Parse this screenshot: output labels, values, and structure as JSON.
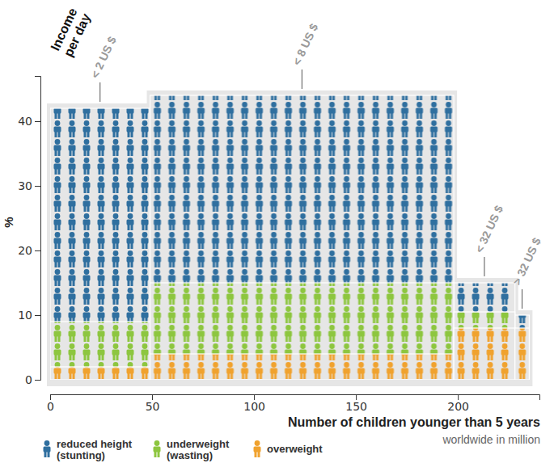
{
  "chart_data": {
    "type": "bar",
    "title": "Income per day",
    "x_label": "Number of children younger than 5 years",
    "x_sublabel": "worldwide in million",
    "y_label": "%",
    "categories": [
      "< 2 US $",
      "< 8 US $",
      "< 32 US $",
      "> 32 US $"
    ],
    "widths": [
      49,
      149,
      30,
      7
    ],
    "series": [
      {
        "name": "reduced height (stunting)",
        "color": "#2f6f9f",
        "values": [
          42,
          44,
          15,
          10
        ]
      },
      {
        "name": "underweight (wasting)",
        "color": "#8dc63f",
        "values": [
          9,
          15,
          10.5,
          2
        ]
      },
      {
        "name": "overweight",
        "color": "#f0a22e",
        "values": [
          2,
          4,
          8,
          8
        ]
      }
    ],
    "xlim": [
      0,
      240
    ],
    "ylim": [
      0,
      47
    ],
    "xticks": [
      0,
      50,
      100,
      150,
      200
    ],
    "yticks": [
      0,
      10,
      20,
      30,
      40
    ],
    "stacked": false,
    "legend": "bottom-left"
  }
}
